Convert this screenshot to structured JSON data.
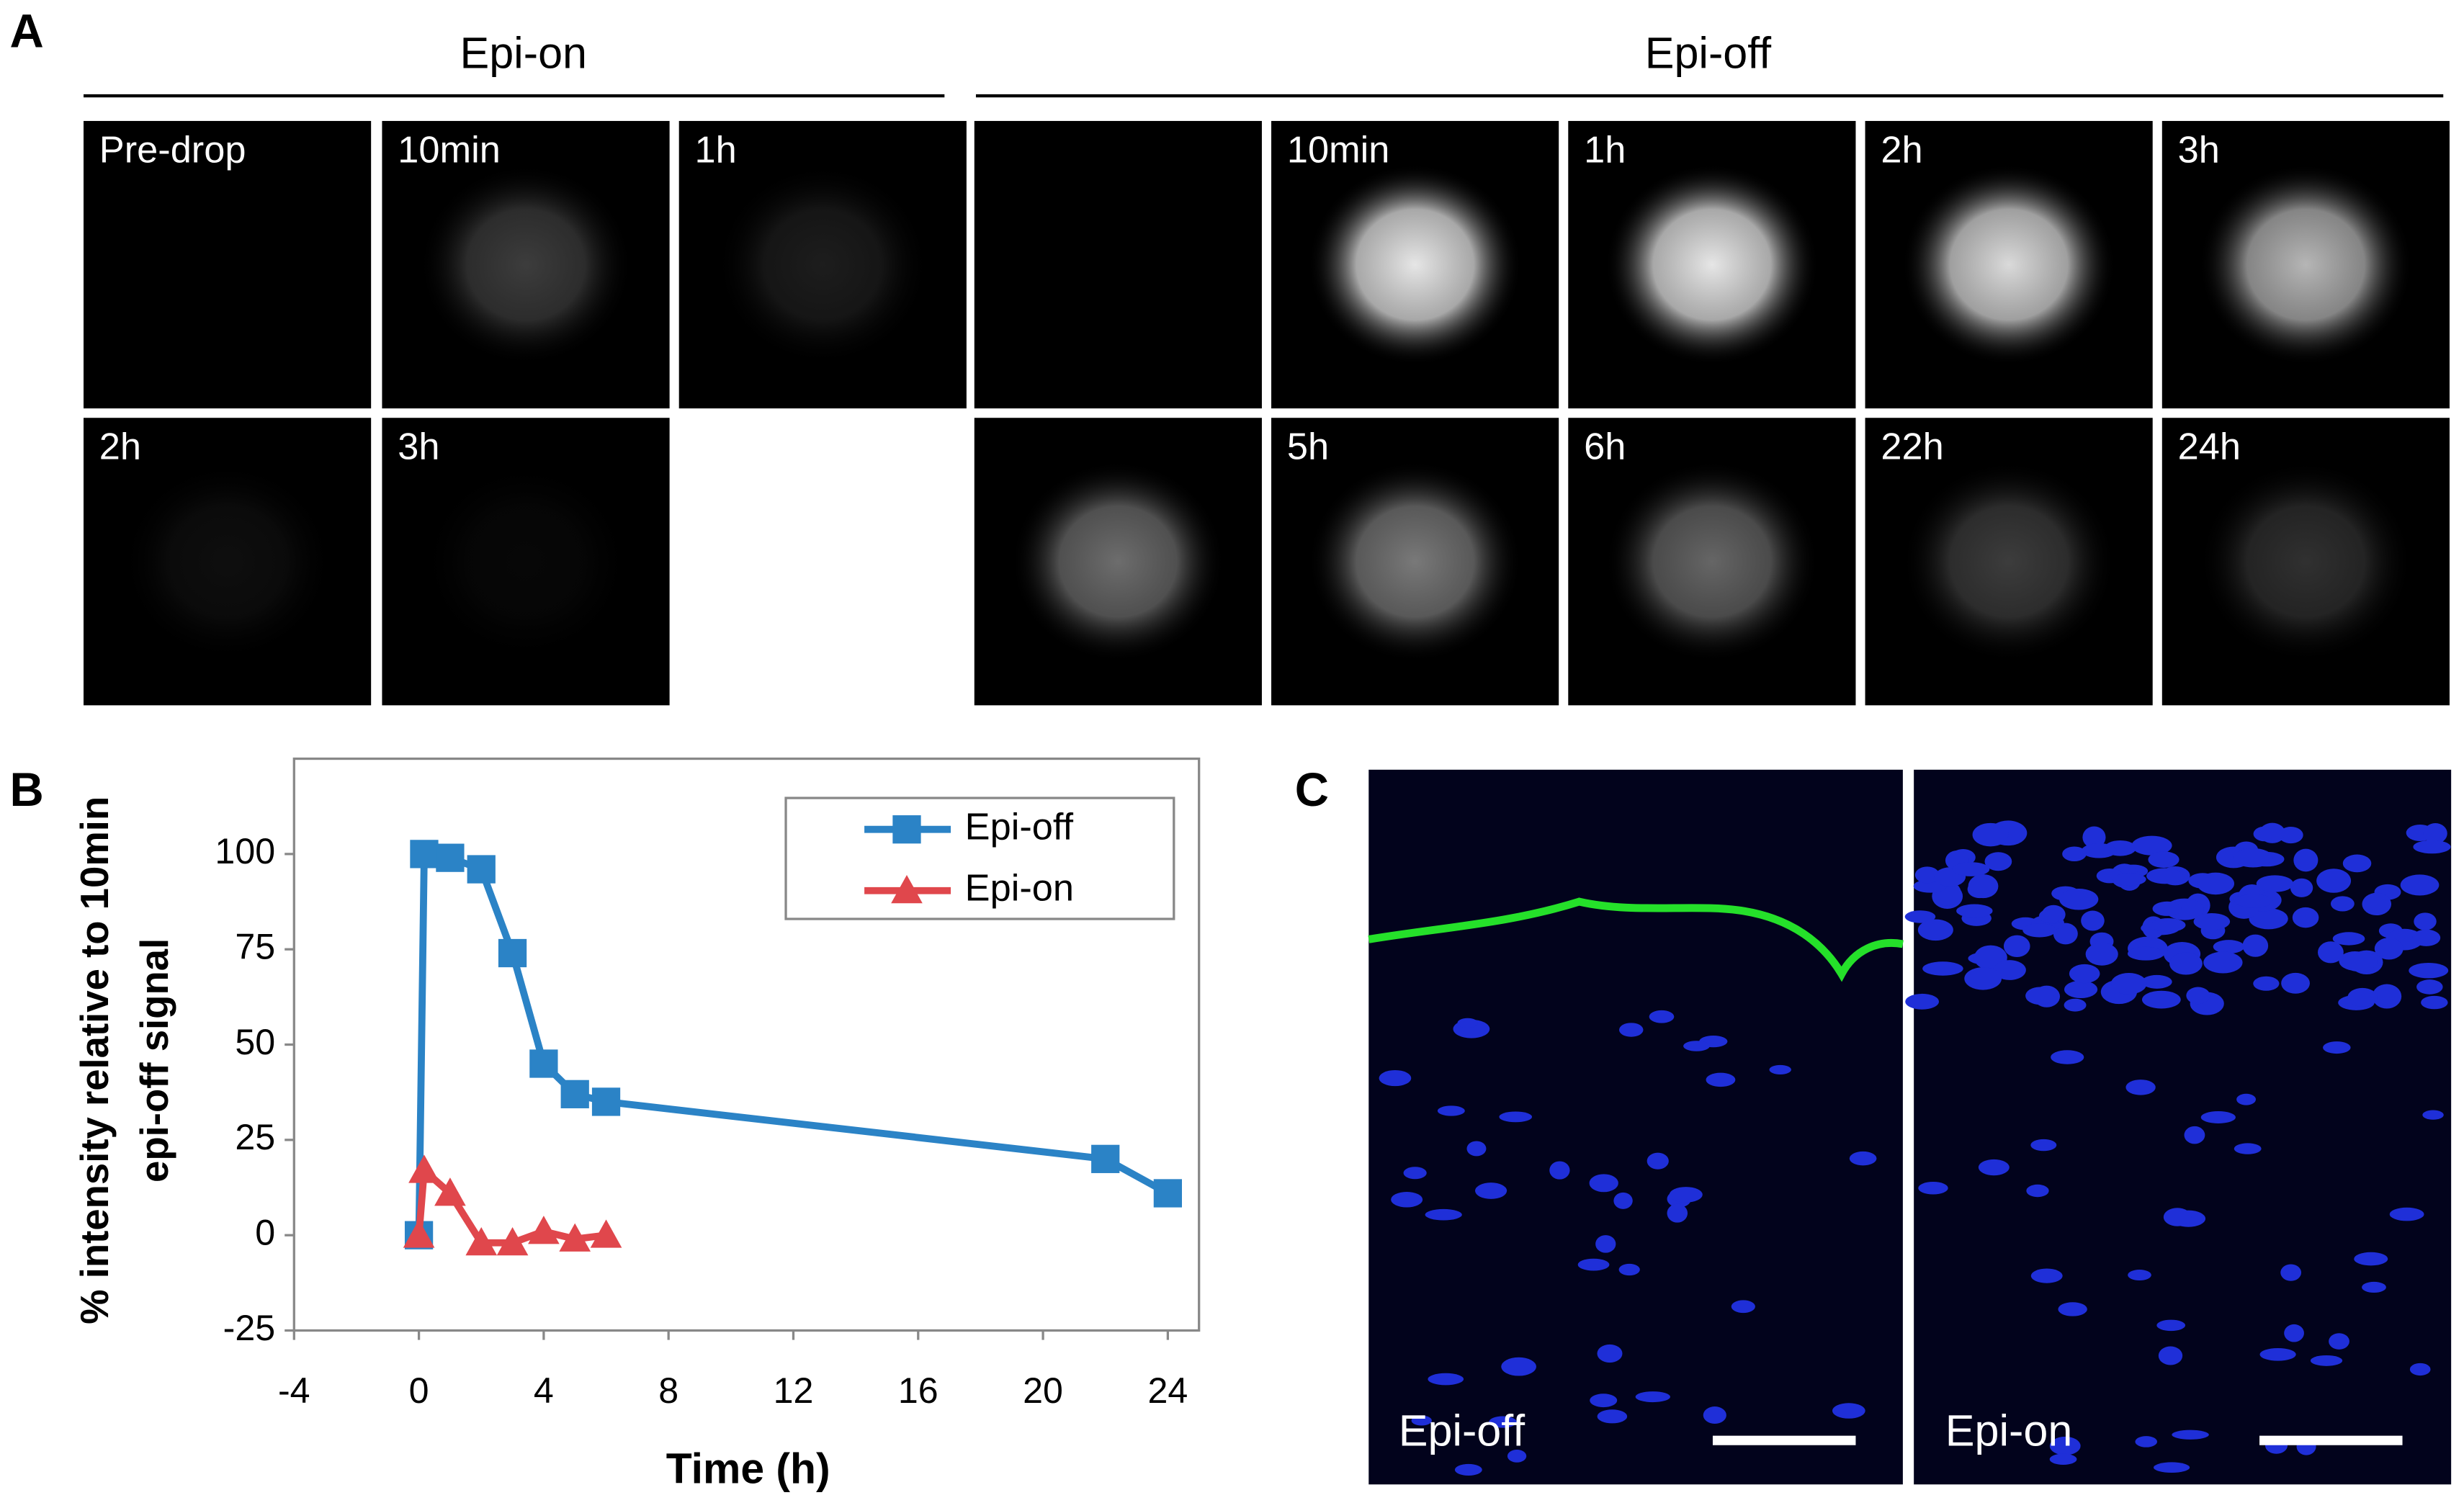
{
  "panel_labels": [
    "A",
    "B",
    "C"
  ],
  "panel_a": {
    "groups": [
      {
        "name": "Epi-on",
        "tiles": [
          "Pre-drop",
          "10min",
          "1h",
          "2h",
          "3h"
        ]
      },
      {
        "name": "Epi-off",
        "tiles": [
          null,
          "10min",
          "1h",
          "2h",
          "3h",
          null,
          "5h",
          "6h",
          "22h",
          "24h"
        ]
      }
    ]
  },
  "chart_data": {
    "type": "line",
    "xlabel": "Time (h)",
    "ylabel": [
      "% intensity relative to 10min",
      "epi-off signal"
    ],
    "series": [
      {
        "name": "Epi-off",
        "color": "#2b83c6",
        "marker": "square",
        "x": [
          0,
          0.17,
          1,
          2,
          3,
          4,
          5,
          6,
          22,
          24
        ],
        "values": [
          0,
          100,
          99,
          96,
          74,
          45,
          37,
          35,
          20,
          11
        ]
      },
      {
        "name": "Epi-on",
        "color": "#e0474c",
        "marker": "triangle",
        "x": [
          0,
          0.17,
          1,
          2,
          3,
          4,
          5,
          6
        ],
        "values": [
          0,
          17,
          11,
          -2,
          -2,
          1,
          -1,
          0
        ]
      }
    ],
    "xlim": [
      -4,
      25
    ],
    "ylim": [
      -25,
      125
    ],
    "xticks": [
      -4,
      0,
      4,
      8,
      12,
      16,
      20,
      24
    ],
    "yticks": [
      -25,
      0,
      25,
      50,
      75,
      100
    ],
    "grid": false,
    "legend": "upper right"
  },
  "panel_c": {
    "labels": [
      "Epi-off",
      "Epi-on"
    ]
  }
}
